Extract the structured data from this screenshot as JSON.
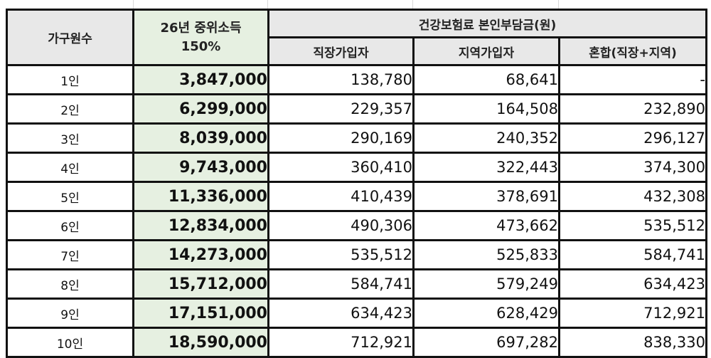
{
  "table": {
    "header": {
      "household_label": "가구원수",
      "median_line1": "26년 중위소득",
      "median_line2": "150%",
      "premium_group_label": "건강보험료 본인부담금(원)",
      "sub_headers": [
        "직장가입자",
        "지역가입자",
        "혼합(직장+지역)"
      ]
    },
    "rows": [
      {
        "household": "1인",
        "median": "3,847,000",
        "workplace": "138,780",
        "regional": "68,641",
        "mixed": "-"
      },
      {
        "household": "2인",
        "median": "6,299,000",
        "workplace": "229,357",
        "regional": "164,508",
        "mixed": "232,890"
      },
      {
        "household": "3인",
        "median": "8,039,000",
        "workplace": "290,169",
        "regional": "240,352",
        "mixed": "296,127"
      },
      {
        "household": "4인",
        "median": "9,743,000",
        "workplace": "360,410",
        "regional": "322,443",
        "mixed": "374,300"
      },
      {
        "household": "5인",
        "median": "11,336,000",
        "workplace": "410,439",
        "regional": "378,691",
        "mixed": "432,308"
      },
      {
        "household": "6인",
        "median": "12,834,000",
        "workplace": "490,306",
        "regional": "473,662",
        "mixed": "535,512"
      },
      {
        "household": "7인",
        "median": "14,273,000",
        "workplace": "535,512",
        "regional": "525,833",
        "mixed": "584,741"
      },
      {
        "household": "8인",
        "median": "15,712,000",
        "workplace": "584,741",
        "regional": "579,249",
        "mixed": "634,423"
      },
      {
        "household": "9인",
        "median": "17,151,000",
        "workplace": "634,423",
        "regional": "628,429",
        "mixed": "712,921"
      },
      {
        "household": "10인",
        "median": "18,590,000",
        "workplace": "712,921",
        "regional": "697,282",
        "mixed": "838,330"
      }
    ]
  },
  "colors": {
    "median_fill": "#e6f0e1",
    "header_fill": "#e8e8e8",
    "border": "#111111"
  }
}
